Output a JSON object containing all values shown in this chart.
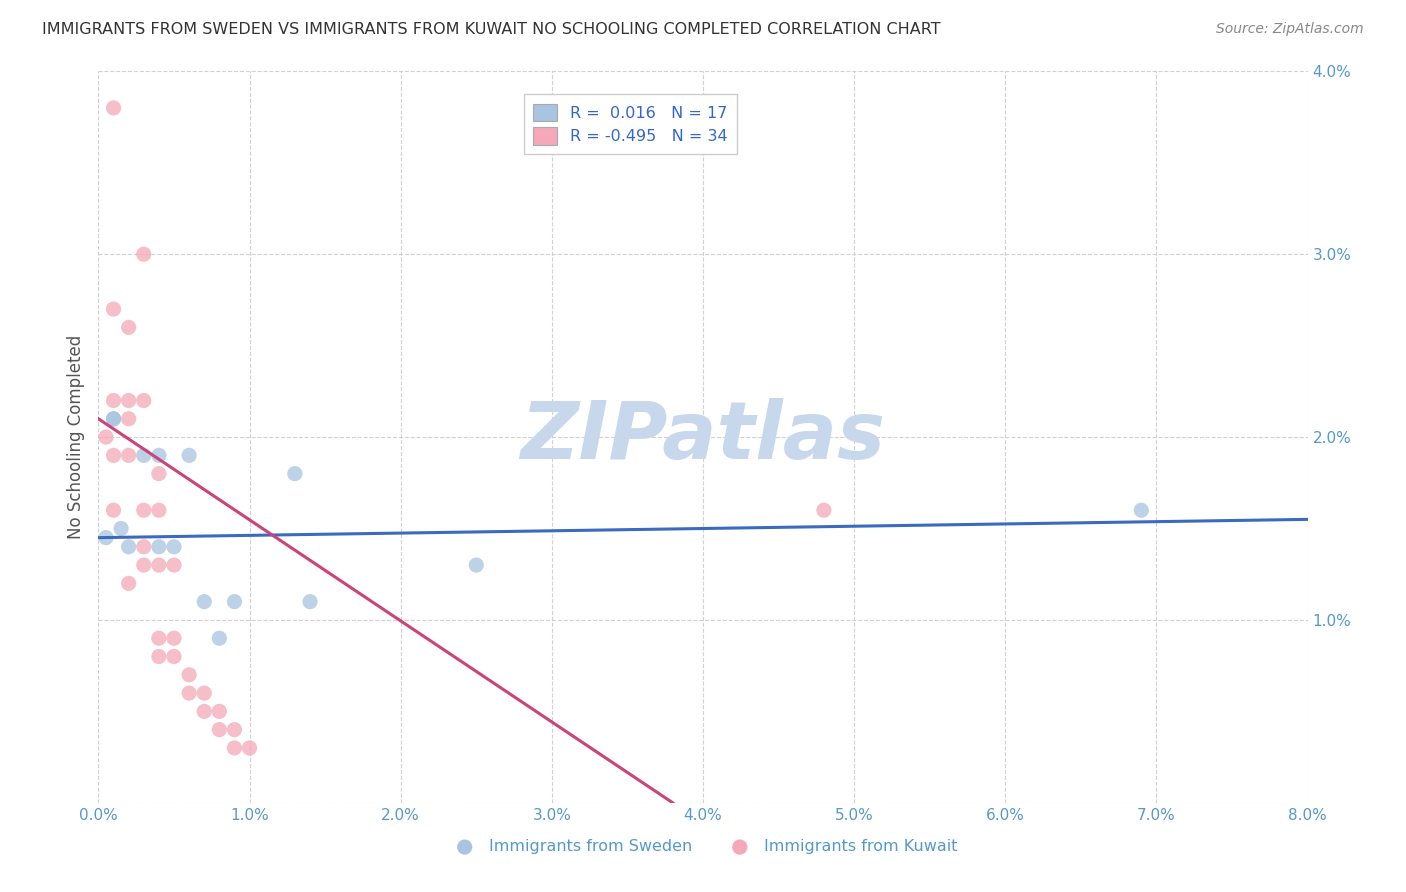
{
  "title": "IMMIGRANTS FROM SWEDEN VS IMMIGRANTS FROM KUWAIT NO SCHOOLING COMPLETED CORRELATION CHART",
  "source": "Source: ZipAtlas.com",
  "ylabel": "No Schooling Completed",
  "watermark": "ZIPatlas",
  "legend_blue_r": "0.016",
  "legend_blue_n": "17",
  "legend_pink_r": "-0.495",
  "legend_pink_n": "34",
  "legend_label_blue": "Immigrants from Sweden",
  "legend_label_pink": "Immigrants from Kuwait",
  "xlim": [
    0.0,
    0.08
  ],
  "ylim": [
    0.0,
    0.04
  ],
  "xticks": [
    0.0,
    0.01,
    0.02,
    0.03,
    0.04,
    0.05,
    0.06,
    0.07,
    0.08
  ],
  "yticks": [
    0.0,
    0.01,
    0.02,
    0.03,
    0.04
  ],
  "xtick_labels": [
    "0.0%",
    "1.0%",
    "2.0%",
    "3.0%",
    "4.0%",
    "5.0%",
    "6.0%",
    "7.0%",
    "8.0%"
  ],
  "ytick_labels_right": [
    "",
    "1.0%",
    "2.0%",
    "3.0%",
    "4.0%"
  ],
  "blue_scatter_x": [
    0.0005,
    0.001,
    0.001,
    0.0015,
    0.002,
    0.003,
    0.004,
    0.004,
    0.005,
    0.006,
    0.007,
    0.008,
    0.009,
    0.013,
    0.014,
    0.025,
    0.069
  ],
  "blue_scatter_y": [
    0.0145,
    0.021,
    0.021,
    0.015,
    0.014,
    0.019,
    0.019,
    0.014,
    0.014,
    0.019,
    0.011,
    0.009,
    0.011,
    0.018,
    0.011,
    0.013,
    0.016
  ],
  "pink_scatter_x": [
    0.0005,
    0.001,
    0.001,
    0.001,
    0.001,
    0.001,
    0.002,
    0.002,
    0.002,
    0.002,
    0.002,
    0.003,
    0.003,
    0.003,
    0.003,
    0.003,
    0.004,
    0.004,
    0.004,
    0.004,
    0.004,
    0.005,
    0.005,
    0.005,
    0.006,
    0.006,
    0.007,
    0.007,
    0.008,
    0.008,
    0.009,
    0.009,
    0.01,
    0.048
  ],
  "pink_scatter_y": [
    0.02,
    0.038,
    0.027,
    0.022,
    0.019,
    0.016,
    0.026,
    0.022,
    0.021,
    0.019,
    0.012,
    0.03,
    0.022,
    0.016,
    0.014,
    0.013,
    0.018,
    0.016,
    0.013,
    0.009,
    0.008,
    0.013,
    0.009,
    0.008,
    0.007,
    0.006,
    0.006,
    0.005,
    0.005,
    0.004,
    0.004,
    0.003,
    0.003,
    0.016
  ],
  "blue_color": "#a8c4e0",
  "pink_color": "#f4a8b8",
  "blue_line_color": "#3a6bbf",
  "pink_line_color": "#cc4477",
  "background_color": "#ffffff",
  "grid_color": "#cccccc",
  "title_color": "#333333",
  "watermark_color": "#c8d8ec",
  "scatter_size": 120,
  "blue_trend_x0": 0.0,
  "blue_trend_y0": 0.0145,
  "blue_trend_x1": 0.08,
  "blue_trend_y1": 0.0155,
  "pink_trend_x0": 0.0,
  "pink_trend_y0": 0.021,
  "pink_trend_x1": 0.038,
  "pink_trend_y1": 0.0
}
